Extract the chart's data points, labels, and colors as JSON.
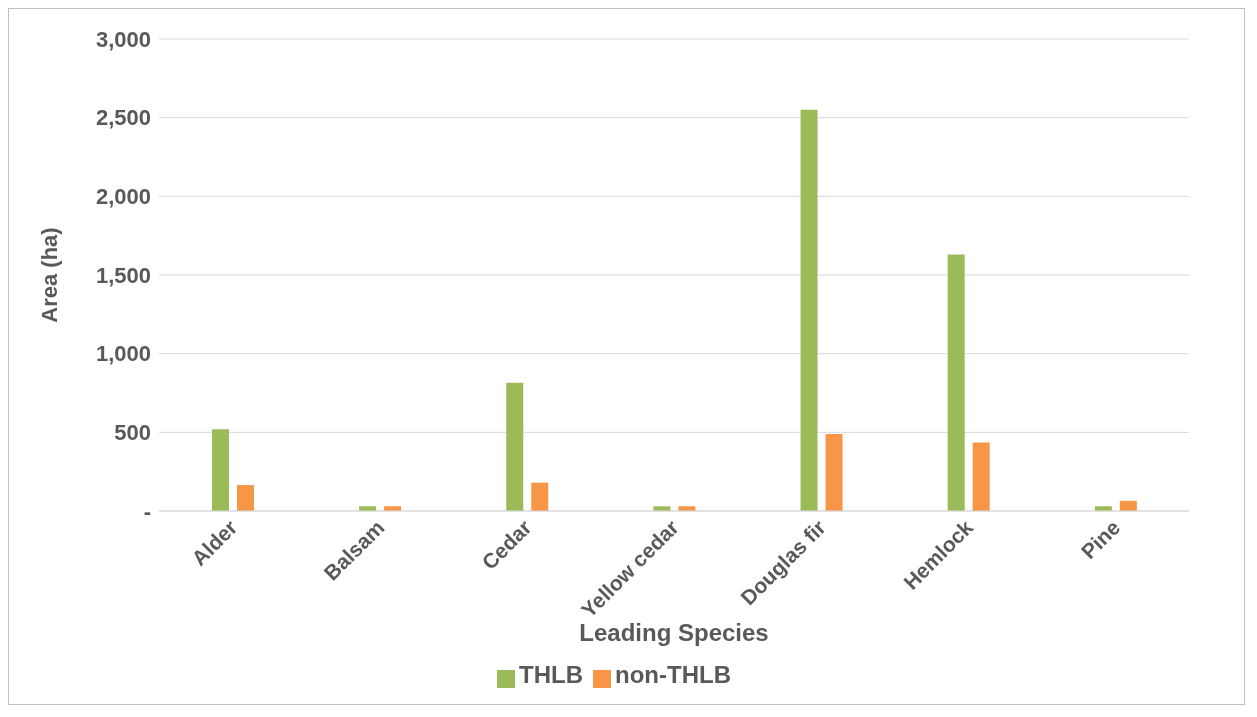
{
  "chart_data": {
    "type": "bar",
    "xlabel": "Leading Species",
    "ylabel": "Area (ha)",
    "categories": [
      "Alder",
      "Balsam",
      "Cedar",
      "Yellow cedar",
      "Douglas fir",
      "Hemlock",
      "Pine"
    ],
    "series": [
      {
        "name": "THLB",
        "color": "#9bbb59",
        "values": [
          520,
          30,
          815,
          30,
          2550,
          1630,
          30
        ]
      },
      {
        "name": "non-THLB",
        "color": "#f79646",
        "values": [
          165,
          30,
          180,
          30,
          490,
          435,
          65
        ]
      }
    ],
    "ylim": [
      0,
      3000
    ],
    "yticks": [
      {
        "value": 0,
        "label": "-"
      },
      {
        "value": 500,
        "label": "500"
      },
      {
        "value": 1000,
        "label": "1,000"
      },
      {
        "value": 1500,
        "label": "1,500"
      },
      {
        "value": 2000,
        "label": "2,000"
      },
      {
        "value": 2500,
        "label": "2,500"
      },
      {
        "value": 3000,
        "label": "3,000"
      }
    ],
    "grid": "y",
    "legend": "bottom"
  }
}
